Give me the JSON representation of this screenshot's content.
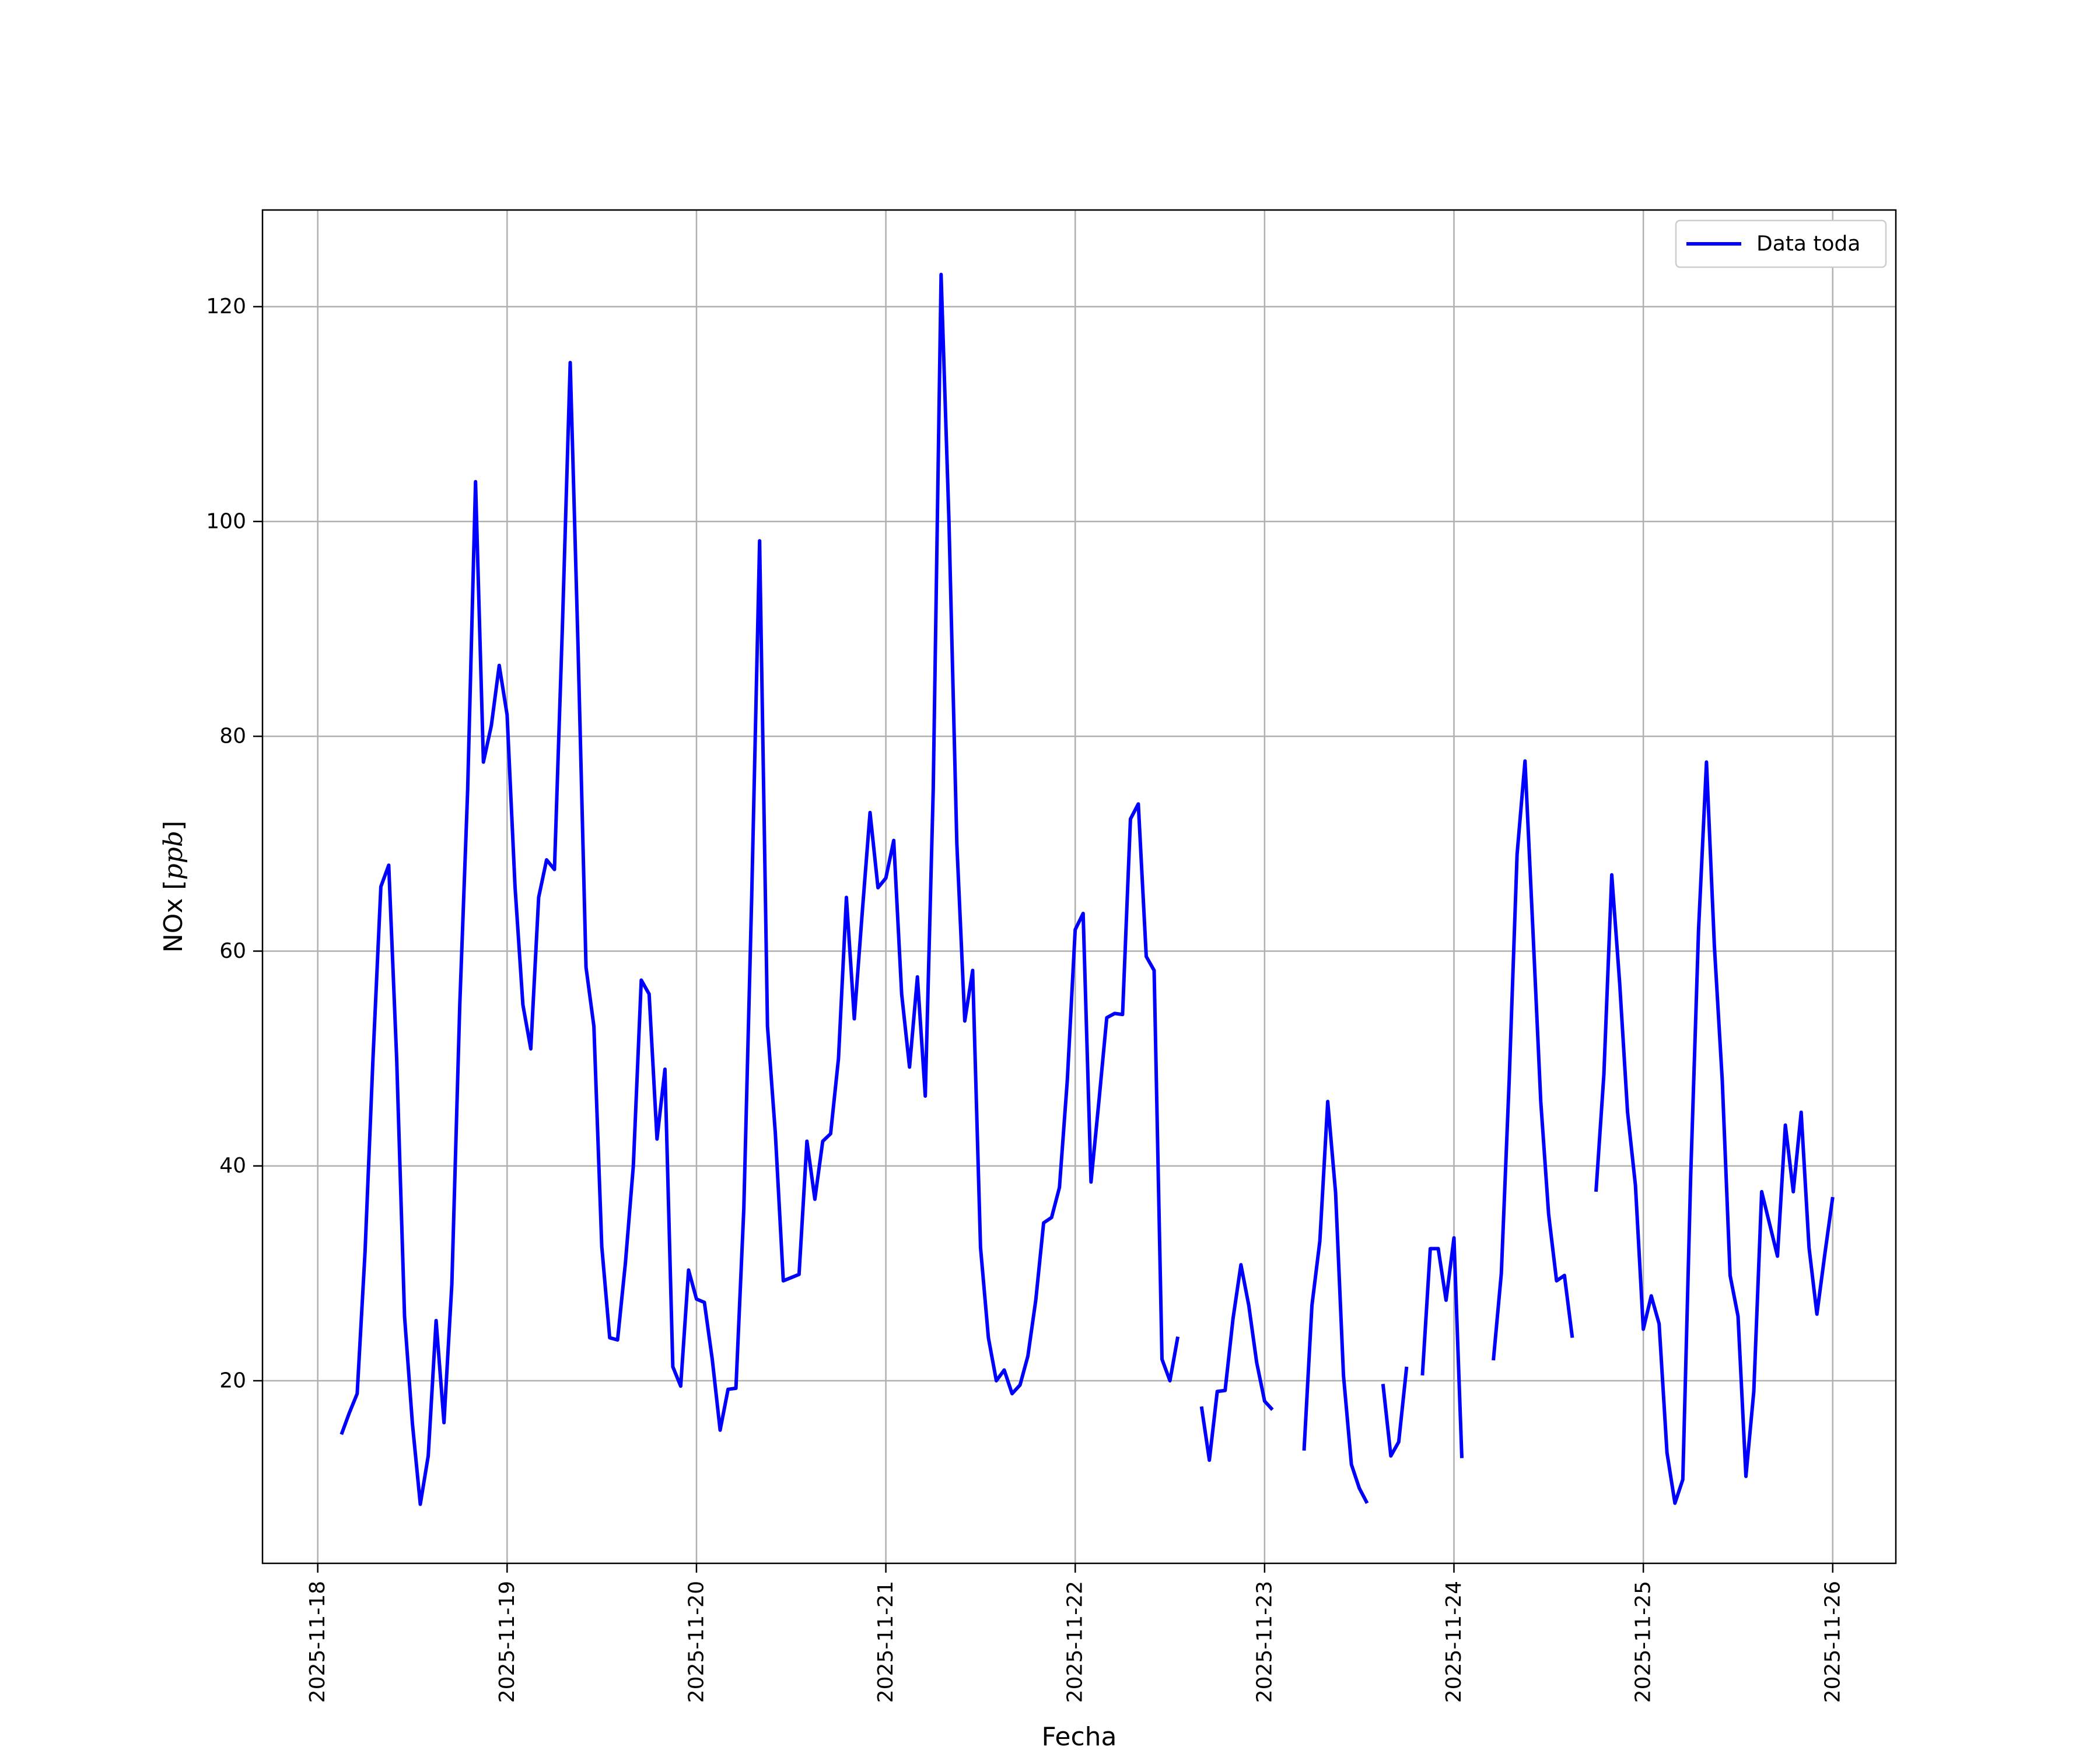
{
  "chart_data": {
    "type": "line",
    "title": "",
    "xlabel": "Fecha",
    "ylabel_main": "NOx [",
    "ylabel_unit": "ppb",
    "ylabel_close": "]",
    "xlim": [
      "2025-11-17 17:00",
      "2025-11-26 08:00"
    ],
    "ylim": [
      3,
      129
    ],
    "x_ticks": [
      "2025-11-18",
      "2025-11-19",
      "2025-11-20",
      "2025-11-21",
      "2025-11-22",
      "2025-11-23",
      "2025-11-24",
      "2025-11-25",
      "2025-11-26"
    ],
    "y_ticks": [
      20,
      40,
      60,
      80,
      100,
      120
    ],
    "grid": true,
    "legend_position": "top-right",
    "series": [
      {
        "name": "Data toda",
        "color": "#0000ff",
        "segments": [
          [
            [
              "2025-11-18 03:00",
              15.0
            ],
            [
              "2025-11-18 04:00",
              17.0
            ],
            [
              "2025-11-18 05:00",
              18.8
            ],
            [
              "2025-11-18 06:00",
              32.0
            ],
            [
              "2025-11-18 07:00",
              50.0
            ],
            [
              "2025-11-18 08:00",
              66.0
            ],
            [
              "2025-11-18 09:00",
              68.0
            ],
            [
              "2025-11-18 10:00",
              50.0
            ],
            [
              "2025-11-18 11:00",
              26.0
            ],
            [
              "2025-11-18 12:00",
              16.0
            ],
            [
              "2025-11-18 13:00",
              8.5
            ],
            [
              "2025-11-18 14:00",
              13.0
            ],
            [
              "2025-11-18 15:00",
              25.6
            ],
            [
              "2025-11-18 16:00",
              16.1
            ],
            [
              "2025-11-18 17:00",
              29.0
            ],
            [
              "2025-11-18 18:00",
              55.0
            ],
            [
              "2025-11-18 19:00",
              75.0
            ],
            [
              "2025-11-18 20:00",
              103.7
            ],
            [
              "2025-11-18 21:00",
              77.6
            ],
            [
              "2025-11-18 22:00",
              81.0
            ],
            [
              "2025-11-18 23:00",
              86.6
            ],
            [
              "2025-11-19 00:00",
              82.0
            ],
            [
              "2025-11-19 01:00",
              66.0
            ],
            [
              "2025-11-19 02:00",
              55.0
            ],
            [
              "2025-11-19 03:00",
              50.9
            ],
            [
              "2025-11-19 04:00",
              65.0
            ],
            [
              "2025-11-19 05:00",
              68.5
            ],
            [
              "2025-11-19 06:00",
              67.6
            ],
            [
              "2025-11-19 07:00",
              90.0
            ],
            [
              "2025-11-19 08:00",
              114.8
            ],
            [
              "2025-11-19 09:00",
              88.0
            ],
            [
              "2025-11-19 10:00",
              58.5
            ],
            [
              "2025-11-19 11:00",
              53.0
            ],
            [
              "2025-11-19 12:00",
              32.5
            ],
            [
              "2025-11-19 13:00",
              24.0
            ],
            [
              "2025-11-19 14:00",
              23.8
            ],
            [
              "2025-11-19 15:00",
              31.0
            ],
            [
              "2025-11-19 16:00",
              40.0
            ],
            [
              "2025-11-19 17:00",
              57.3
            ],
            [
              "2025-11-19 18:00",
              56.0
            ],
            [
              "2025-11-19 19:00",
              42.5
            ],
            [
              "2025-11-19 20:00",
              49.0
            ],
            [
              "2025-11-19 21:00",
              21.3
            ],
            [
              "2025-11-19 22:00",
              19.5
            ],
            [
              "2025-11-19 23:00",
              30.3
            ],
            [
              "2025-11-20 00:00",
              27.6
            ],
            [
              "2025-11-20 01:00",
              27.3
            ],
            [
              "2025-11-20 02:00",
              22.0
            ],
            [
              "2025-11-20 03:00",
              15.4
            ],
            [
              "2025-11-20 04:00",
              19.2
            ],
            [
              "2025-11-20 05:00",
              19.3
            ],
            [
              "2025-11-20 06:00",
              36.0
            ],
            [
              "2025-11-20 07:00",
              65.0
            ],
            [
              "2025-11-20 08:00",
              98.2
            ],
            [
              "2025-11-20 09:00",
              53.0
            ],
            [
              "2025-11-20 10:00",
              43.0
            ],
            [
              "2025-11-20 11:00",
              29.3
            ],
            [
              "2025-11-20 12:00",
              29.6
            ],
            [
              "2025-11-20 13:00",
              29.9
            ],
            [
              "2025-11-20 14:00",
              42.3
            ],
            [
              "2025-11-20 15:00",
              36.9
            ],
            [
              "2025-11-20 16:00",
              42.3
            ],
            [
              "2025-11-20 17:00",
              43.0
            ],
            [
              "2025-11-20 18:00",
              50.0
            ],
            [
              "2025-11-20 19:00",
              65.0
            ],
            [
              "2025-11-20 20:00",
              53.7
            ],
            [
              "2025-11-20 21:00",
              63.5
            ],
            [
              "2025-11-20 22:00",
              72.9
            ],
            [
              "2025-11-20 23:00",
              65.9
            ],
            [
              "2025-11-21 00:00",
              66.8
            ],
            [
              "2025-11-21 01:00",
              70.3
            ],
            [
              "2025-11-21 02:00",
              56.0
            ],
            [
              "2025-11-21 03:00",
              49.2
            ],
            [
              "2025-11-21 04:00",
              57.6
            ],
            [
              "2025-11-21 05:00",
              46.5
            ],
            [
              "2025-11-21 06:00",
              75.0
            ],
            [
              "2025-11-21 07:00",
              123.0
            ],
            [
              "2025-11-21 08:00",
              100.0
            ],
            [
              "2025-11-21 09:00",
              70.0
            ],
            [
              "2025-11-21 10:00",
              53.5
            ],
            [
              "2025-11-21 11:00",
              58.2
            ],
            [
              "2025-11-21 12:00",
              32.4
            ],
            [
              "2025-11-21 13:00",
              24.0
            ],
            [
              "2025-11-21 14:00",
              20.0
            ],
            [
              "2025-11-21 15:00",
              21.0
            ],
            [
              "2025-11-21 16:00",
              18.8
            ],
            [
              "2025-11-21 17:00",
              19.6
            ],
            [
              "2025-11-21 18:00",
              22.3
            ],
            [
              "2025-11-21 19:00",
              27.5
            ],
            [
              "2025-11-21 20:00",
              34.7
            ],
            [
              "2025-11-21 21:00",
              35.2
            ],
            [
              "2025-11-21 22:00",
              38.0
            ],
            [
              "2025-11-21 23:00",
              48.0
            ],
            [
              "2025-11-22 00:00",
              62.0
            ],
            [
              "2025-11-22 01:00",
              63.5
            ],
            [
              "2025-11-22 02:00",
              38.5
            ],
            [
              "2025-11-22 03:00",
              46.0
            ],
            [
              "2025-11-22 04:00",
              53.8
            ],
            [
              "2025-11-22 05:00",
              54.2
            ],
            [
              "2025-11-22 06:00",
              54.1
            ],
            [
              "2025-11-22 07:00",
              72.3
            ],
            [
              "2025-11-22 08:00",
              73.7
            ],
            [
              "2025-11-22 09:00",
              59.5
            ],
            [
              "2025-11-22 10:00",
              58.2
            ],
            [
              "2025-11-22 11:00",
              22.0
            ],
            [
              "2025-11-22 12:00",
              20.0
            ],
            [
              "2025-11-22 13:00",
              24.1
            ]
          ],
          [
            [
              "2025-11-22 16:00",
              17.6
            ],
            [
              "2025-11-22 17:00",
              12.6
            ],
            [
              "2025-11-22 18:00",
              19.0
            ],
            [
              "2025-11-22 19:00",
              19.1
            ],
            [
              "2025-11-22 20:00",
              25.8
            ],
            [
              "2025-11-22 21:00",
              30.8
            ],
            [
              "2025-11-22 22:00",
              27.0
            ],
            [
              "2025-11-22 23:00",
              21.7
            ],
            [
              "2025-11-23 00:00",
              18.1
            ],
            [
              "2025-11-23 01:00",
              17.3
            ]
          ],
          [
            [
              "2025-11-23 05:00",
              13.5
            ],
            [
              "2025-11-23 06:00",
              27.0
            ],
            [
              "2025-11-23 07:00",
              33.0
            ],
            [
              "2025-11-23 08:00",
              46.0
            ],
            [
              "2025-11-23 09:00",
              37.5
            ],
            [
              "2025-11-23 10:00",
              20.5
            ],
            [
              "2025-11-23 11:00",
              12.2
            ],
            [
              "2025-11-23 12:00",
              10.0
            ],
            [
              "2025-11-23 13:00",
              8.6
            ]
          ],
          [
            [
              "2025-11-23 15:00",
              19.7
            ],
            [
              "2025-11-23 16:00",
              13.0
            ],
            [
              "2025-11-23 17:00",
              14.3
            ],
            [
              "2025-11-23 18:00",
              21.3
            ]
          ],
          [
            [
              "2025-11-23 20:00",
              20.5
            ],
            [
              "2025-11-23 21:00",
              32.3
            ],
            [
              "2025-11-23 22:00",
              32.3
            ],
            [
              "2025-11-23 23:00",
              27.5
            ],
            [
              "2025-11-24 00:00",
              33.3
            ],
            [
              "2025-11-24 01:00",
              12.8
            ]
          ],
          [
            [
              "2025-11-24 05:00",
              21.9
            ],
            [
              "2025-11-24 06:00",
              30.0
            ],
            [
              "2025-11-24 07:00",
              48.0
            ],
            [
              "2025-11-24 08:00",
              69.0
            ],
            [
              "2025-11-24 09:00",
              77.7
            ],
            [
              "2025-11-24 10:00",
              62.0
            ],
            [
              "2025-11-24 11:00",
              46.0
            ],
            [
              "2025-11-24 12:00",
              35.5
            ],
            [
              "2025-11-24 13:00",
              29.3
            ],
            [
              "2025-11-24 14:00",
              29.8
            ],
            [
              "2025-11-24 15:00",
              24.0
            ]
          ],
          [
            [
              "2025-11-24 18:00",
              37.6
            ],
            [
              "2025-11-24 19:00",
              48.5
            ],
            [
              "2025-11-24 20:00",
              67.1
            ],
            [
              "2025-11-24 21:00",
              57.0
            ],
            [
              "2025-11-24 22:00",
              45.0
            ],
            [
              "2025-11-24 23:00",
              38.2
            ],
            [
              "2025-11-25 00:00",
              24.8
            ],
            [
              "2025-11-25 01:00",
              27.9
            ],
            [
              "2025-11-25 02:00",
              25.3
            ],
            [
              "2025-11-25 03:00",
              13.3
            ],
            [
              "2025-11-25 04:00",
              8.6
            ],
            [
              "2025-11-25 05:00",
              10.8
            ],
            [
              "2025-11-25 06:00",
              39.0
            ],
            [
              "2025-11-25 07:00",
              62.0
            ],
            [
              "2025-11-25 08:00",
              77.6
            ],
            [
              "2025-11-25 09:00",
              60.5
            ],
            [
              "2025-11-25 10:00",
              48.0
            ],
            [
              "2025-11-25 11:00",
              29.8
            ],
            [
              "2025-11-25 12:00",
              26.0
            ],
            [
              "2025-11-25 13:00",
              11.1
            ],
            [
              "2025-11-25 14:00",
              19.0
            ],
            [
              "2025-11-25 15:00",
              37.6
            ],
            [
              "2025-11-25 16:00",
              34.6
            ],
            [
              "2025-11-25 17:00",
              31.6
            ],
            [
              "2025-11-25 18:00",
              43.8
            ],
            [
              "2025-11-25 19:00",
              37.6
            ],
            [
              "2025-11-25 20:00",
              45.0
            ],
            [
              "2025-11-25 21:00",
              32.4
            ],
            [
              "2025-11-25 22:00",
              26.2
            ],
            [
              "2025-11-25 23:00",
              31.8
            ],
            [
              "2025-11-26 00:00",
              37.1
            ]
          ]
        ]
      }
    ]
  }
}
